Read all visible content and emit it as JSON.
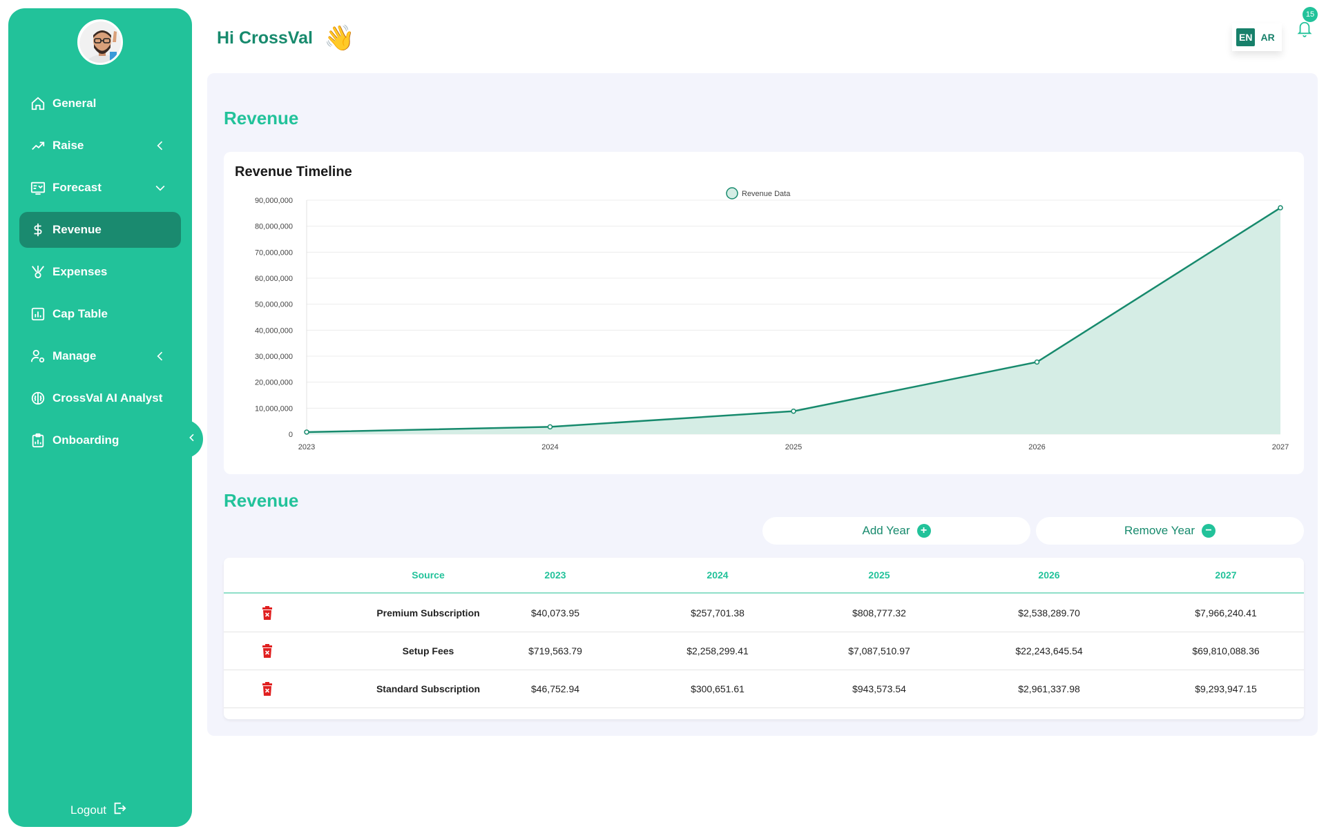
{
  "user": {
    "greeting": "Hi CrossVal",
    "wave": "👋"
  },
  "sidebar": {
    "items": [
      {
        "label": "General",
        "icon": "home-icon"
      },
      {
        "label": "Raise",
        "icon": "trending-up-icon",
        "chevron": "left"
      },
      {
        "label": "Forecast",
        "icon": "forecast-icon",
        "chevron": "down"
      },
      {
        "label": "Revenue",
        "icon": "dollar-icon",
        "active": true
      },
      {
        "label": "Expenses",
        "icon": "expenses-icon"
      },
      {
        "label": "Cap Table",
        "icon": "bar-chart-icon"
      },
      {
        "label": "Manage",
        "icon": "user-settings-icon",
        "chevron": "left"
      },
      {
        "label": "CrossVal AI Analyst",
        "icon": "brain-icon"
      },
      {
        "label": "Onboarding",
        "icon": "clipboard-icon"
      }
    ],
    "logout_label": "Logout"
  },
  "header": {
    "lang_en": "EN",
    "lang_ar": "AR",
    "notification_count": "15"
  },
  "main": {
    "section_title": "Revenue",
    "chart_title": "Revenue Timeline",
    "table_section_title": "Revenue",
    "add_year_label": "Add Year",
    "remove_year_label": "Remove Year"
  },
  "chart_data": {
    "type": "area",
    "title": "Revenue Timeline",
    "x": [
      "2023",
      "2024",
      "2025",
      "2026",
      "2027"
    ],
    "series": [
      {
        "name": "Revenue Data",
        "values": [
          806390.68,
          2816652.4,
          8839861.83,
          27743273.22,
          87070275.92
        ]
      }
    ],
    "ylim": [
      0,
      90000000
    ],
    "yticks": [
      "0",
      "10,000,000",
      "20,000,000",
      "30,000,000",
      "40,000,000",
      "50,000,000",
      "60,000,000",
      "70,000,000",
      "80,000,000",
      "90,000,000"
    ],
    "legend": "top-center",
    "grid": true,
    "colors": {
      "line": "#178a6d",
      "fill": "#d5ede5"
    }
  },
  "table": {
    "headers": [
      "Source",
      "2023",
      "2024",
      "2025",
      "2026",
      "2027"
    ],
    "rows": [
      {
        "source": "Premium Subscription",
        "values": [
          "$40,073.95",
          "$257,701.38",
          "$808,777.32",
          "$2,538,289.70",
          "$7,966,240.41"
        ]
      },
      {
        "source": "Setup Fees",
        "values": [
          "$719,563.79",
          "$2,258,299.41",
          "$7,087,510.97",
          "$22,243,645.54",
          "$69,810,088.36"
        ]
      },
      {
        "source": "Standard Subscription",
        "values": [
          "$46,752.94",
          "$300,651.61",
          "$943,573.54",
          "$2,961,337.98",
          "$9,293,947.15"
        ]
      }
    ]
  },
  "colors": {
    "accent": "#22c29a",
    "accent_dark": "#178a6d",
    "danger": "#e02020"
  }
}
